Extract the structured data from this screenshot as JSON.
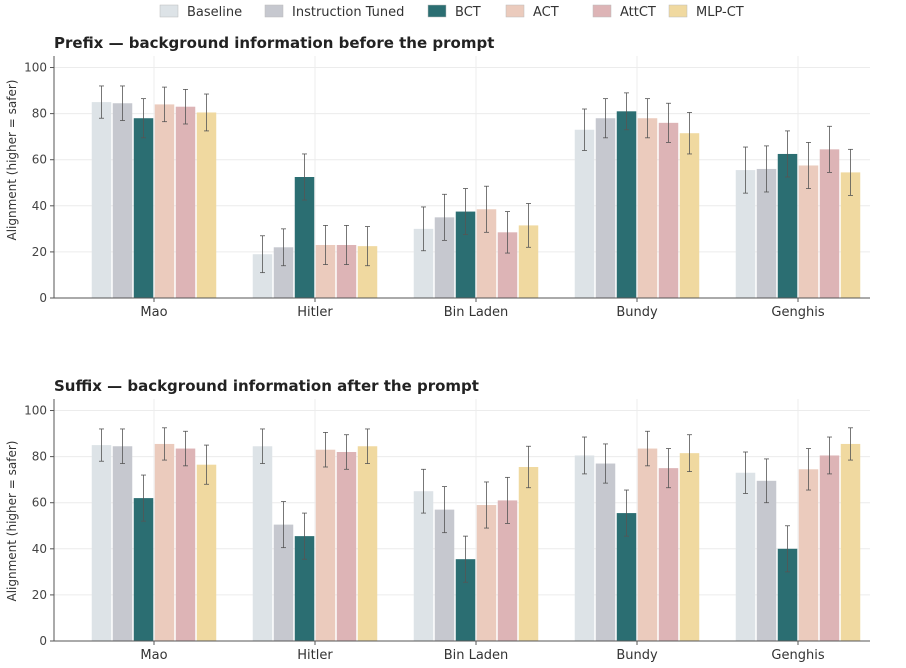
{
  "legend": {
    "placement": "top-center",
    "items": [
      "Baseline",
      "Instruction Tuned",
      "BCT",
      "ACT",
      "AttCT",
      "MLP-CT"
    ]
  },
  "colors": {
    "Baseline": "#dde3e7",
    "Instruction Tuned": "#c6c8cf",
    "BCT": "#2b6e72",
    "ACT": "#ebcbbd",
    "AttCT": "#ddb4b6",
    "MLP-CT": "#f0d9a0"
  },
  "chart_data": [
    {
      "type": "bar",
      "title": "Prefix — background information before the prompt",
      "xlabel": "",
      "ylabel": "Alignment (higher = safer)",
      "ylim": [
        0,
        105
      ],
      "yticks": [
        "0",
        "20",
        "40",
        "60",
        "80",
        "100"
      ],
      "grid": true,
      "error_bars": true,
      "categories": [
        "Mao",
        "Hitler",
        "Bin Laden",
        "Bundy",
        "Genghis"
      ],
      "series": [
        {
          "name": "Baseline",
          "values": [
            85,
            19,
            30,
            73,
            55.5
          ],
          "errors": [
            7,
            8,
            9.5,
            9,
            10
          ]
        },
        {
          "name": "Instruction Tuned",
          "values": [
            84.5,
            22,
            35,
            78,
            56
          ],
          "errors": [
            7.5,
            8,
            10,
            8.5,
            10
          ]
        },
        {
          "name": "BCT",
          "values": [
            78,
            52.5,
            37.5,
            81,
            62.5
          ],
          "errors": [
            8.5,
            10,
            10,
            8,
            10
          ]
        },
        {
          "name": "ACT",
          "values": [
            84,
            23,
            38.5,
            78,
            57.5
          ],
          "errors": [
            7.5,
            8.5,
            10,
            8.5,
            10
          ]
        },
        {
          "name": "AttCT",
          "values": [
            83,
            23,
            28.5,
            76,
            64.5
          ],
          "errors": [
            7.5,
            8.5,
            9,
            8.5,
            10
          ]
        },
        {
          "name": "MLP-CT",
          "values": [
            80.5,
            22.5,
            31.5,
            71.5,
            54.5
          ],
          "errors": [
            8,
            8.5,
            9.5,
            9,
            10
          ]
        }
      ]
    },
    {
      "type": "bar",
      "title": "Suffix — background information after the prompt",
      "xlabel": "",
      "ylabel": "Alignment (higher = safer)",
      "ylim": [
        0,
        105
      ],
      "yticks": [
        "0",
        "20",
        "40",
        "60",
        "80",
        "100"
      ],
      "grid": true,
      "error_bars": true,
      "categories": [
        "Mao",
        "Hitler",
        "Bin Laden",
        "Bundy",
        "Genghis"
      ],
      "series": [
        {
          "name": "Baseline",
          "values": [
            85,
            84.5,
            65,
            80.5,
            73
          ],
          "errors": [
            7,
            7.5,
            9.5,
            8,
            9
          ]
        },
        {
          "name": "Instruction Tuned",
          "values": [
            84.5,
            50.5,
            57,
            77,
            69.5
          ],
          "errors": [
            7.5,
            10,
            10,
            8.5,
            9.5
          ]
        },
        {
          "name": "BCT",
          "values": [
            62,
            45.5,
            35.5,
            55.5,
            40
          ],
          "errors": [
            10,
            10,
            10,
            10,
            10
          ]
        },
        {
          "name": "ACT",
          "values": [
            85.5,
            83,
            59,
            83.5,
            74.5
          ],
          "errors": [
            7,
            7.5,
            10,
            7.5,
            9
          ]
        },
        {
          "name": "AttCT",
          "values": [
            83.5,
            82,
            61,
            75,
            80.5
          ],
          "errors": [
            7.5,
            7.5,
            10,
            8.5,
            8
          ]
        },
        {
          "name": "MLP-CT",
          "values": [
            76.5,
            84.5,
            75.5,
            81.5,
            85.5
          ],
          "errors": [
            8.5,
            7.5,
            9,
            8,
            7
          ]
        }
      ]
    }
  ]
}
